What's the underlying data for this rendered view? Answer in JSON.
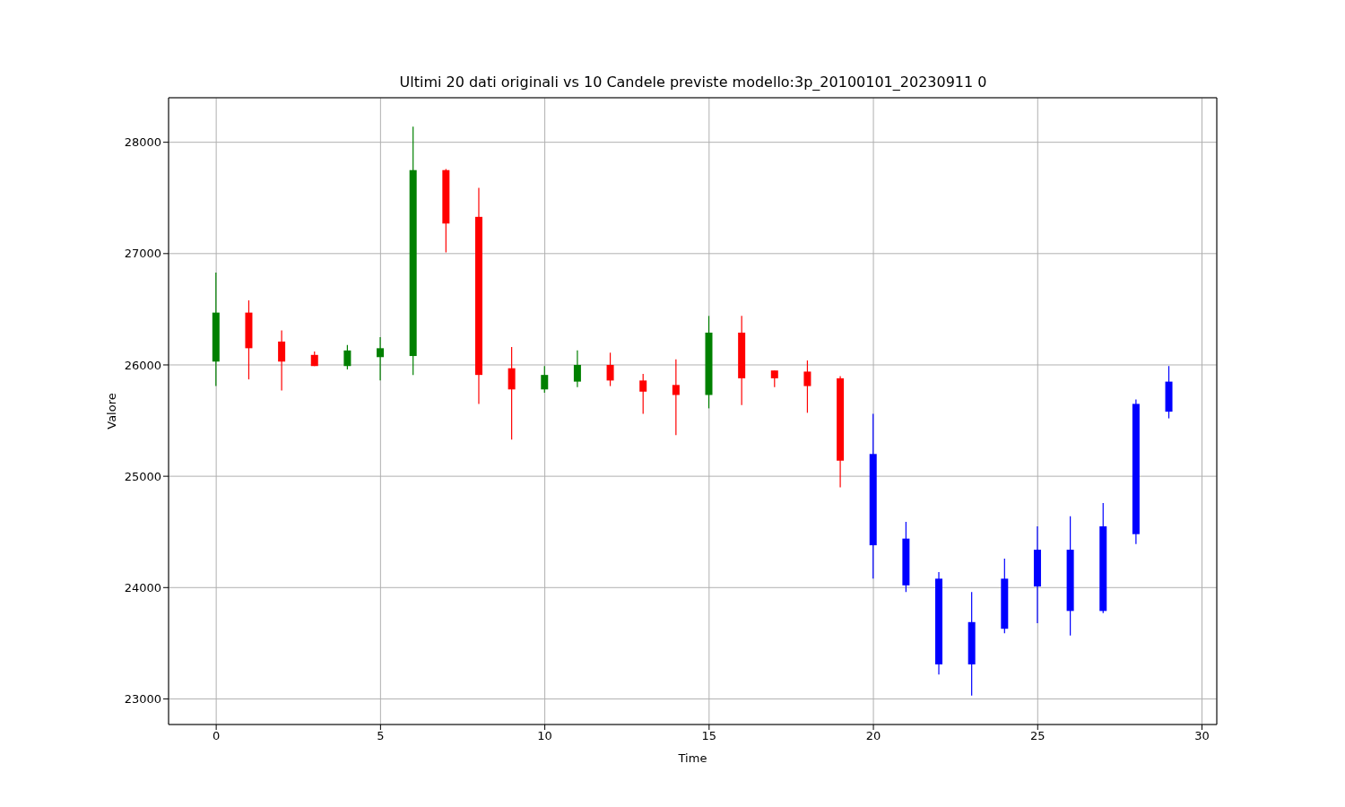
{
  "chart_data": {
    "type": "candlestick",
    "title": "Ultimi 20 dati originali vs 10 Candele previste modello:3p_20100101_20230911 0",
    "xlabel": "Time",
    "ylabel": "Valore",
    "x": [
      0,
      1,
      2,
      3,
      4,
      5,
      6,
      7,
      8,
      9,
      10,
      11,
      12,
      13,
      14,
      15,
      16,
      17,
      18,
      19,
      20,
      21,
      22,
      23,
      24,
      25,
      26,
      27,
      28,
      29
    ],
    "ohlc": [
      [
        26030,
        26830,
        25810,
        26470
      ],
      [
        26470,
        26580,
        25870,
        26150
      ],
      [
        26210,
        26310,
        25770,
        26030
      ],
      [
        26090,
        26120,
        25990,
        25990
      ],
      [
        25990,
        26180,
        25960,
        26130
      ],
      [
        26070,
        26250,
        25860,
        26150
      ],
      [
        26080,
        28140,
        25910,
        27750
      ],
      [
        27750,
        27760,
        27010,
        27270
      ],
      [
        27330,
        27590,
        25650,
        25910
      ],
      [
        25970,
        26160,
        25330,
        25780
      ],
      [
        25780,
        25990,
        25750,
        25910
      ],
      [
        25850,
        26130,
        25800,
        26000
      ],
      [
        26000,
        26110,
        25810,
        25860
      ],
      [
        25860,
        25920,
        25560,
        25760
      ],
      [
        25820,
        26050,
        25370,
        25730
      ],
      [
        25730,
        26440,
        25610,
        26290
      ],
      [
        26290,
        26440,
        25640,
        25880
      ],
      [
        25950,
        25950,
        25800,
        25880
      ],
      [
        25940,
        26040,
        25570,
        25810
      ],
      [
        25880,
        25900,
        24900,
        25140
      ],
      [
        24380,
        25560,
        24080,
        25200
      ],
      [
        24020,
        24590,
        23960,
        24440
      ],
      [
        23310,
        24140,
        23220,
        24080
      ],
      [
        23310,
        23960,
        23030,
        23690
      ],
      [
        23630,
        24260,
        23590,
        24080
      ],
      [
        24010,
        24550,
        23680,
        24340
      ],
      [
        23790,
        24640,
        23570,
        24340
      ],
      [
        23790,
        24760,
        23770,
        24550
      ],
      [
        24480,
        25690,
        24390,
        25650
      ],
      [
        25580,
        25990,
        25520,
        25850
      ]
    ],
    "colors": [
      "#008000",
      "#ff0000",
      "#ff0000",
      "#ff0000",
      "#008000",
      "#008000",
      "#008000",
      "#ff0000",
      "#ff0000",
      "#ff0000",
      "#008000",
      "#008000",
      "#ff0000",
      "#ff0000",
      "#ff0000",
      "#008000",
      "#ff0000",
      "#ff0000",
      "#ff0000",
      "#ff0000",
      "#0000ff",
      "#0000ff",
      "#0000ff",
      "#0000ff",
      "#0000ff",
      "#0000ff",
      "#0000ff",
      "#0000ff",
      "#0000ff",
      "#0000ff"
    ],
    "xlim": [
      -1.45,
      30.45
    ],
    "ylim": [
      22770,
      28400
    ],
    "xticks": [
      0,
      5,
      10,
      15,
      20,
      25,
      30
    ],
    "yticks": [
      23000,
      24000,
      25000,
      26000,
      27000,
      28000
    ],
    "grid": true
  }
}
